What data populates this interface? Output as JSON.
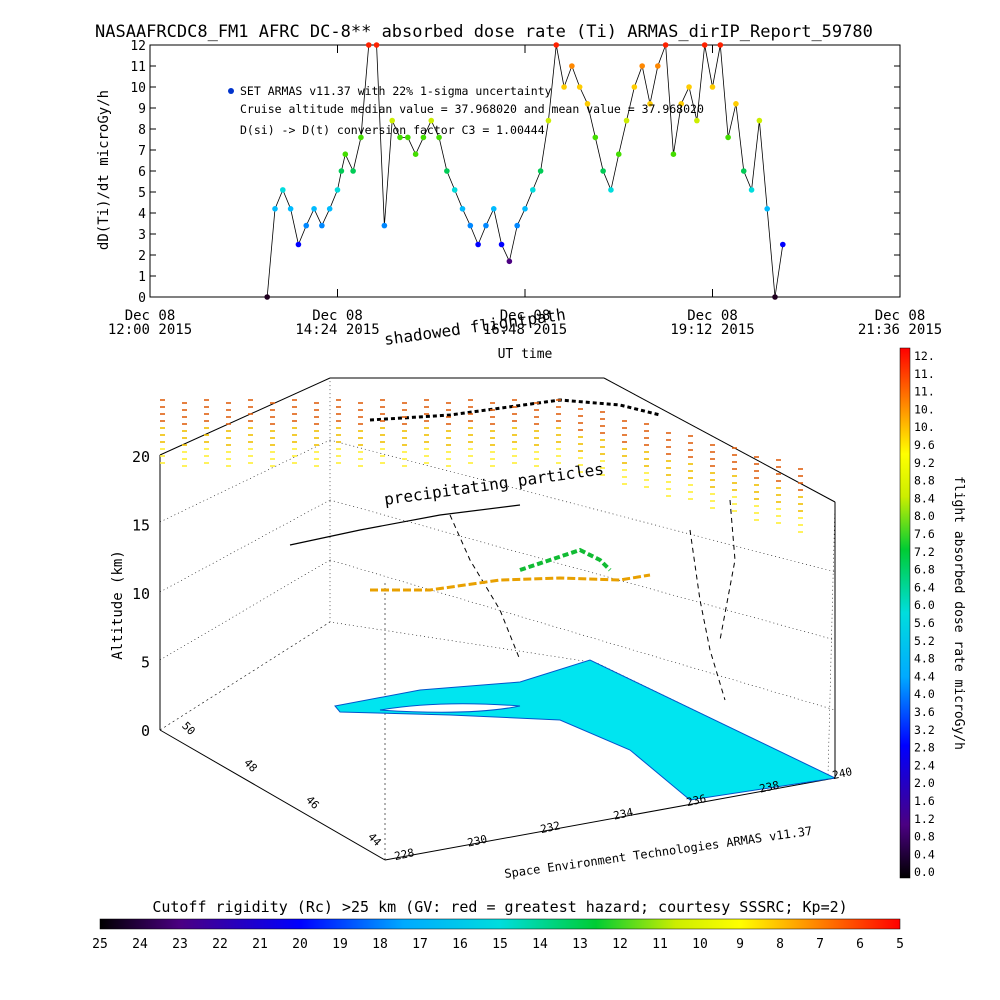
{
  "title": "NASAAFRCDC8_FM1 AFRC DC-8** absorbed dose rate (Ti) ARMAS_dirIP_Report_59780",
  "chart_data": [
    {
      "type": "scatter",
      "ylabel": "dD(Ti)/dt microGy/h",
      "xlabel": "UT time",
      "ylim": [
        0,
        12
      ],
      "y_ticks": [
        "0",
        "1",
        "2",
        "3",
        "4",
        "5",
        "6",
        "7",
        "8",
        "9",
        "10",
        "11",
        "12"
      ],
      "x_ticks": [
        {
          "line1": "Dec 08",
          "line2": "12:00 2015"
        },
        {
          "line1": "Dec 08",
          "line2": "14:24 2015"
        },
        {
          "line1": "Dec 08",
          "line2": "16:48 2015"
        },
        {
          "line1": "Dec 08",
          "line2": "19:12 2015"
        },
        {
          "line1": "Dec 08",
          "line2": "21:36 2015"
        }
      ],
      "legend": {
        "series_label": "SET ARMAS v11.37 with 22% 1-sigma uncertainty",
        "note1": "Cruise altitude median value = 37.968020 and mean value = 37.968020",
        "note2": "D(si) -> D(t) conversion factor C3 = 1.00444"
      },
      "x_hours": [
        13.5,
        13.6,
        13.7,
        13.8,
        13.9,
        14.0,
        14.1,
        14.2,
        14.3,
        14.4,
        14.45,
        14.5,
        14.6,
        14.7,
        14.8,
        14.9,
        15.0,
        15.1,
        15.2,
        15.3,
        15.4,
        15.5,
        15.6,
        15.7,
        15.8,
        15.9,
        16.0,
        16.1,
        16.2,
        16.3,
        16.4,
        16.5,
        16.6,
        16.7,
        16.8,
        16.9,
        17.0,
        17.1,
        17.2,
        17.3,
        17.4,
        17.5,
        17.6,
        17.7,
        17.8,
        17.9,
        18.0,
        18.1,
        18.2,
        18.3,
        18.4,
        18.5,
        18.6,
        18.7,
        18.8,
        18.9,
        19.0,
        19.1,
        19.2,
        19.3,
        19.4,
        19.5,
        19.6,
        19.7,
        19.8,
        19.9,
        20.0,
        20.1
      ],
      "values": [
        0,
        4.2,
        5.1,
        4.2,
        2.5,
        3.4,
        4.2,
        3.4,
        4.2,
        5.1,
        6,
        6.8,
        6,
        7.6,
        12,
        12,
        3.4,
        8.4,
        7.6,
        7.6,
        6.8,
        7.6,
        8.4,
        7.6,
        6,
        5.1,
        4.2,
        3.4,
        2.5,
        3.4,
        4.2,
        2.5,
        1.7,
        3.4,
        4.2,
        5.1,
        6,
        8.4,
        12,
        10,
        11,
        10,
        9.2,
        7.6,
        6,
        5.1,
        6.8,
        8.4,
        10,
        11,
        9.2,
        11,
        12,
        6.8,
        9.2,
        10,
        8.4,
        12,
        10,
        12,
        7.6,
        9.2,
        6,
        5.1,
        8.4,
        4.2,
        0,
        2.5
      ]
    },
    {
      "type": "scatter",
      "ylabel": "Altitude (km)",
      "z_ticks": [
        "0",
        "5",
        "10",
        "15",
        "20"
      ],
      "y_ticks": [
        "44",
        "46",
        "48",
        "50"
      ],
      "x_ticks": [
        "228",
        "230",
        "232",
        "234",
        "236",
        "238",
        "240"
      ],
      "annotations": [
        "shadowed flightpath",
        "precipitating particles"
      ],
      "credit": "Space Environment Technologies ARMAS v11.37"
    }
  ],
  "colorbar_right": {
    "label": "flight absorbed dose rate microGy/h",
    "ticks": [
      "12.",
      "11.",
      "11.",
      "10.",
      "10.",
      "9.6",
      "9.2",
      "8.8",
      "8.4",
      "8.0",
      "7.6",
      "7.2",
      "6.8",
      "6.4",
      "6.0",
      "5.6",
      "5.2",
      "4.8",
      "4.4",
      "4.0",
      "3.6",
      "3.2",
      "2.8",
      "2.4",
      "2.0",
      "1.6",
      "1.2",
      "0.8",
      "0.4",
      "0.0"
    ]
  },
  "colorbar_bottom": {
    "label": "Cutoff rigidity (Rc) >25 km (GV: red = greatest hazard; courtesy SSSRC; Kp=2)",
    "ticks": [
      "25",
      "24",
      "23",
      "22",
      "21",
      "20",
      "19",
      "18",
      "17",
      "16",
      "15",
      "14",
      "13",
      "12",
      "11",
      "10",
      "9",
      "8",
      "7",
      "6",
      "5"
    ]
  }
}
